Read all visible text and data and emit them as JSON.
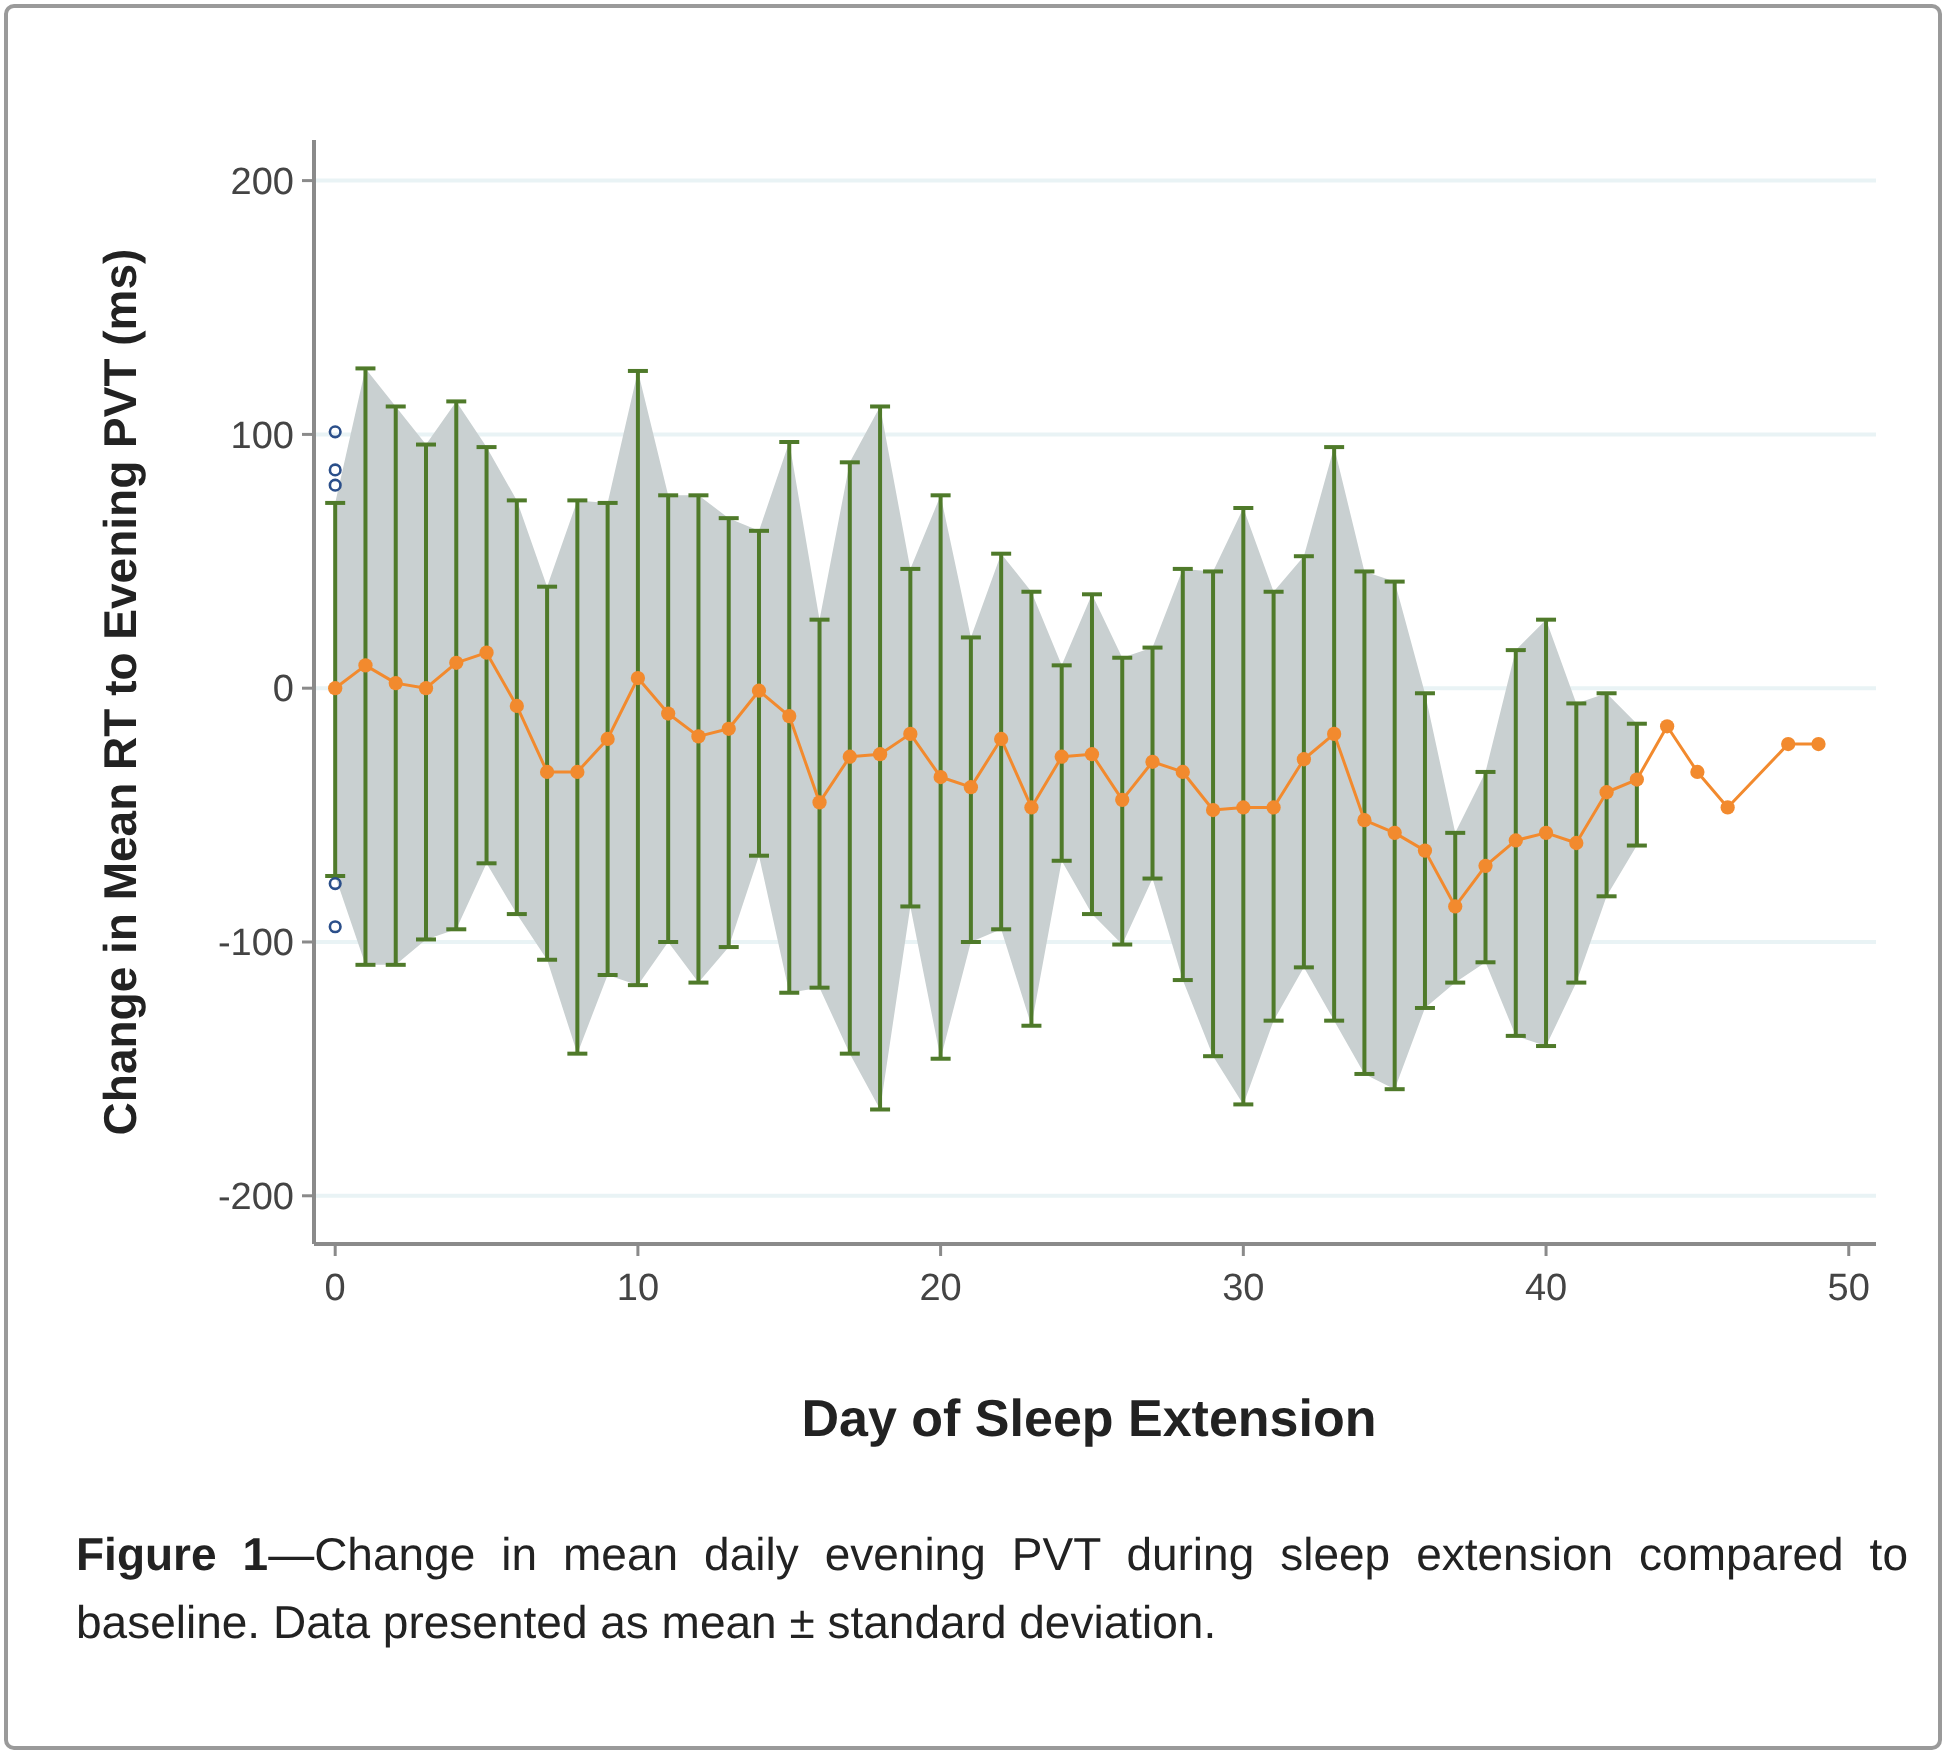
{
  "chart_data": {
    "type": "line",
    "xlabel": "Day of Sleep Extension",
    "ylabel": "Change in Mean RT to Evening PVT (ms)",
    "annotations": [
      "Figure 1",
      "—Change in mean daily evening PVT during sleep extension compared to baseline. Data presented as mean ± standard deviation."
    ],
    "xlim": [
      -0.7,
      50.9
    ],
    "xticks": [
      0,
      10,
      20,
      30,
      40,
      50
    ],
    "ylim": [
      -219,
      216
    ],
    "yticks": [
      -200,
      -100,
      0,
      100,
      200
    ],
    "grid": "y",
    "series": [
      {
        "color": "#f28a2e",
        "marker": "circle",
        "line_style": "solid",
        "x": [
          0,
          1,
          2,
          3,
          4,
          5,
          6,
          7,
          8,
          9,
          10,
          11,
          12,
          13,
          14,
          15,
          16,
          17,
          18,
          19,
          20,
          21,
          22,
          23,
          24,
          25,
          26,
          27,
          28,
          29,
          30,
          31,
          32,
          33,
          34,
          35,
          36,
          37,
          38,
          39,
          40,
          41,
          42,
          43,
          44,
          45,
          46,
          48,
          49
        ],
        "values": [
          0,
          9,
          2,
          0,
          10,
          14,
          -7,
          -33,
          -33,
          -20,
          4,
          -10,
          -19,
          -16,
          -1,
          -11,
          -45,
          -27,
          -26,
          -18,
          -35,
          -39,
          -20,
          -47,
          -27,
          -26,
          -44,
          -29,
          -33,
          -48,
          -47,
          -47,
          -28,
          -18,
          -52,
          -57,
          -64,
          -86,
          -70,
          -60,
          -57,
          -61,
          -41,
          -36,
          -15,
          -33,
          -47,
          -22,
          -22
        ],
        "lower": [
          -74,
          -109,
          -109,
          -99,
          -95,
          -69,
          -89,
          -107,
          -144,
          -113,
          -117,
          -100,
          -116,
          -102,
          -66,
          -120,
          -118,
          -144,
          -166,
          -86,
          -146,
          -100,
          -95,
          -133,
          -68,
          -89,
          -101,
          -75,
          -115,
          -145,
          -164,
          -131,
          -110,
          -131,
          -152,
          -158,
          -126,
          -116,
          -108,
          -137,
          -141,
          -116,
          -82,
          -62,
          null,
          null,
          null,
          null,
          null
        ],
        "upper": [
          73,
          126,
          111,
          96,
          113,
          95,
          74,
          40,
          74,
          73,
          125,
          76,
          76,
          67,
          62,
          97,
          27,
          89,
          111,
          47,
          76,
          20,
          53,
          38,
          9,
          37,
          12,
          16,
          47,
          46,
          71,
          38,
          52,
          95,
          46,
          42,
          -2,
          -57,
          -33,
          15,
          27,
          -6,
          -2,
          -14,
          null,
          null,
          null,
          null,
          null
        ],
        "errors": [
          [
            -74,
            73
          ],
          [
            -109,
            126
          ],
          [
            -109,
            111
          ],
          [
            -99,
            96
          ],
          [
            -95,
            113
          ],
          [
            -69,
            95
          ],
          [
            -89,
            74
          ],
          [
            -107,
            40
          ],
          [
            -144,
            74
          ],
          [
            -113,
            73
          ],
          [
            -117,
            125
          ],
          [
            -100,
            76
          ],
          [
            -116,
            76
          ],
          [
            -102,
            67
          ],
          [
            -66,
            62
          ],
          [
            -120,
            97
          ],
          [
            -118,
            27
          ],
          [
            -144,
            89
          ],
          [
            -166,
            111
          ],
          [
            -86,
            47
          ],
          [
            -146,
            76
          ],
          [
            -100,
            20
          ],
          [
            -95,
            53
          ],
          [
            -133,
            38
          ],
          [
            -68,
            9
          ],
          [
            -89,
            37
          ],
          [
            -101,
            12
          ],
          [
            -75,
            16
          ],
          [
            -115,
            47
          ],
          [
            -145,
            46
          ],
          [
            -164,
            71
          ],
          [
            -131,
            38
          ],
          [
            -110,
            52
          ],
          [
            -131,
            95
          ],
          [
            -152,
            46
          ],
          [
            -158,
            42
          ],
          [
            -126,
            -2
          ],
          [
            -116,
            -57
          ],
          [
            -108,
            -33
          ],
          [
            -137,
            15
          ],
          [
            -141,
            27
          ],
          [
            -116,
            -6
          ],
          [
            -82,
            -2
          ],
          [
            -62,
            -14
          ],
          null,
          null,
          null,
          null,
          null
        ]
      },
      {
        "type": "scatter",
        "color": "#2b4f8a",
        "marker": "circle",
        "x": [
          0,
          0,
          0,
          0,
          0
        ],
        "values": [
          101,
          86,
          80,
          -77,
          -94
        ]
      }
    ]
  }
}
